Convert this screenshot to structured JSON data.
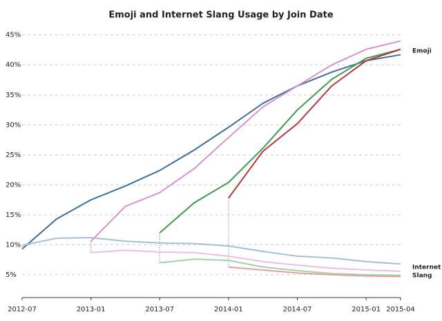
{
  "chart_data": {
    "type": "line",
    "title": "Emoji and Internet Slang Usage by Join Date",
    "categories": [
      "2012-07",
      null,
      "2013-01",
      null,
      "2013-07",
      null,
      "2014-01",
      null,
      "2014-07",
      null,
      "2015-01",
      "2015-04"
    ],
    "ylim": [
      1.2,
      46
    ],
    "yticks": [
      {
        "value": 5,
        "label": "5%"
      },
      {
        "value": 10,
        "label": "10%"
      },
      {
        "value": 15,
        "label": "15%"
      },
      {
        "value": 20,
        "label": "20%"
      },
      {
        "value": 25,
        "label": "25%"
      },
      {
        "value": 30,
        "label": "30%"
      },
      {
        "value": 35,
        "label": "35%"
      },
      {
        "value": 40,
        "label": "40%"
      },
      {
        "value": 45,
        "label": "45%"
      }
    ],
    "grid": true,
    "series": [
      {
        "color": "#3d6f96",
        "values": [
          9.3,
          14.3,
          17.5,
          19.8,
          22.4,
          25.8,
          29.6,
          33.6,
          36.5,
          38.8,
          40.7,
          41.7
        ]
      },
      {
        "color": "#d98fcf",
        "values": [
          null,
          null,
          10.6,
          16.4,
          18.7,
          22.7,
          27.9,
          33,
          36.5,
          40,
          42.6,
          44
        ]
      },
      {
        "color": "#3f9a4c",
        "values": [
          null,
          null,
          null,
          null,
          12,
          17,
          20.4,
          26.1,
          32.5,
          37.6,
          41.1,
          42.6
        ]
      },
      {
        "color": "#b8333b",
        "values": [
          null,
          null,
          null,
          null,
          null,
          null,
          17.8,
          25.6,
          30.2,
          36.5,
          40.7,
          42.6
        ]
      },
      {
        "color": "#a3bfd6",
        "values": [
          9.9,
          11.1,
          11.2,
          10.6,
          10.3,
          10.2,
          9.8,
          8.9,
          8.1,
          7.8,
          7.2,
          6.8
        ]
      },
      {
        "color": "#ebbfe5",
        "values": [
          null,
          null,
          8.7,
          9.1,
          8.8,
          8.7,
          8.1,
          7.2,
          6.6,
          6.1,
          5.8,
          5.6
        ]
      },
      {
        "color": "#9fd3a6",
        "values": [
          null,
          null,
          null,
          null,
          7,
          7.6,
          7.4,
          6.3,
          5.7,
          5.2,
          5,
          4.9
        ]
      },
      {
        "color": "#e2a0a3",
        "values": [
          null,
          null,
          null,
          null,
          null,
          null,
          6.3,
          5.8,
          5.3,
          5,
          4.8,
          4.7
        ]
      }
    ],
    "annotations": [
      "Emoji",
      "Internet",
      "Slang"
    ]
  }
}
